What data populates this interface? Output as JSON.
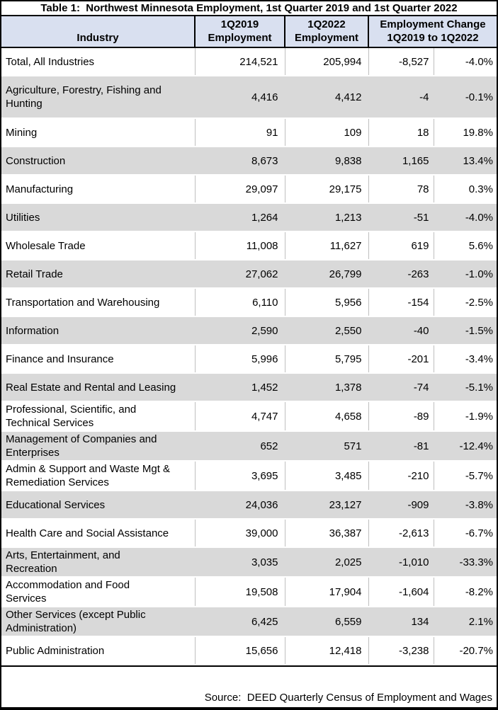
{
  "title": "Table 1:  Northwest Minnesota Employment, 1st Quarter 2019 and 1st Quarter 2022",
  "columns": {
    "industry": "Industry",
    "q1_2019": "1Q2019\nEmployment",
    "q1_2022": "1Q2022\nEmployment",
    "change": "Employment Change\n1Q2019 to 1Q2022"
  },
  "rows": [
    {
      "industry": "Total, All Industries",
      "e2019": "214,521",
      "e2022": "205,994",
      "change": "-8,527",
      "pct": "-4.0%"
    },
    {
      "industry": "Agriculture, Forestry, Fishing and\nHunting",
      "e2019": "4,416",
      "e2022": "4,412",
      "change": "-4",
      "pct": "-0.1%"
    },
    {
      "industry": "Mining",
      "e2019": "91",
      "e2022": "109",
      "change": "18",
      "pct": "19.8%"
    },
    {
      "industry": "Construction",
      "e2019": "8,673",
      "e2022": "9,838",
      "change": "1,165",
      "pct": "13.4%"
    },
    {
      "industry": "Manufacturing",
      "e2019": "29,097",
      "e2022": "29,175",
      "change": "78",
      "pct": "0.3%"
    },
    {
      "industry": "Utilities",
      "e2019": "1,264",
      "e2022": "1,213",
      "change": "-51",
      "pct": "-4.0%"
    },
    {
      "industry": "Wholesale Trade",
      "e2019": "11,008",
      "e2022": "11,627",
      "change": "619",
      "pct": "5.6%"
    },
    {
      "industry": "Retail Trade",
      "e2019": "27,062",
      "e2022": "26,799",
      "change": "-263",
      "pct": "-1.0%"
    },
    {
      "industry": "Transportation and Warehousing",
      "e2019": "6,110",
      "e2022": "5,956",
      "change": "-154",
      "pct": "-2.5%"
    },
    {
      "industry": "Information",
      "e2019": "2,590",
      "e2022": "2,550",
      "change": "-40",
      "pct": "-1.5%"
    },
    {
      "industry": "Finance and Insurance",
      "e2019": "5,996",
      "e2022": "5,795",
      "change": "-201",
      "pct": "-3.4%"
    },
    {
      "industry": "Real Estate and Rental and Leasing",
      "e2019": "1,452",
      "e2022": "1,378",
      "change": "-74",
      "pct": "-5.1%"
    },
    {
      "industry": "Professional, Scientific, and\nTechnical Services",
      "e2019": "4,747",
      "e2022": "4,658",
      "change": "-89",
      "pct": "-1.9%"
    },
    {
      "industry": "Management of Companies and\nEnterprises",
      "e2019": "652",
      "e2022": "571",
      "change": "-81",
      "pct": "-12.4%"
    },
    {
      "industry": "Admin & Support and Waste Mgt &\nRemediation Services",
      "e2019": "3,695",
      "e2022": "3,485",
      "change": "-210",
      "pct": "-5.7%"
    },
    {
      "industry": "Educational Services",
      "e2019": "24,036",
      "e2022": "23,127",
      "change": "-909",
      "pct": "-3.8%"
    },
    {
      "industry": "Health Care and Social Assistance",
      "e2019": "39,000",
      "e2022": "36,387",
      "change": "-2,613",
      "pct": "-6.7%"
    },
    {
      "industry": "Arts, Entertainment, and\nRecreation",
      "e2019": "3,035",
      "e2022": "2,025",
      "change": "-1,010",
      "pct": "-33.3%"
    },
    {
      "industry": "Accommodation and Food\nServices",
      "e2019": "19,508",
      "e2022": "17,904",
      "change": "-1,604",
      "pct": "-8.2%"
    },
    {
      "industry": "Other Services (except Public\nAdministration)",
      "e2019": "6,425",
      "e2022": "6,559",
      "change": "134",
      "pct": "2.1%"
    },
    {
      "industry": "Public Administration",
      "e2019": "15,656",
      "e2022": "12,418",
      "change": "-3,238",
      "pct": "-20.7%"
    }
  ],
  "footer": {
    "source": "Source:  DEED Quarterly Census of Employment and Wages"
  },
  "colors": {
    "header_fill": "#d9e0f0",
    "shaded_row_fill": "#d9d9d9",
    "outer_border": "#000000",
    "gridline": "#bfbfbf"
  },
  "chart_data": {
    "type": "table",
    "title": "Table 1: Northwest Minnesota Employment, 1st Quarter 2019 and 1st Quarter 2022",
    "columns": [
      "Industry",
      "1Q2019 Employment",
      "1Q2022 Employment",
      "Employment Change 1Q2019 to 1Q2022 (count)",
      "Employment Change 1Q2019 to 1Q2022 (percent)"
    ],
    "rows": [
      [
        "Total, All Industries",
        214521,
        205994,
        -8527,
        -4.0
      ],
      [
        "Agriculture, Forestry, Fishing and Hunting",
        4416,
        4412,
        -4,
        -0.1
      ],
      [
        "Mining",
        91,
        109,
        18,
        19.8
      ],
      [
        "Construction",
        8673,
        9838,
        1165,
        13.4
      ],
      [
        "Manufacturing",
        29097,
        29175,
        78,
        0.3
      ],
      [
        "Utilities",
        1264,
        1213,
        -51,
        -4.0
      ],
      [
        "Wholesale Trade",
        11008,
        11627,
        619,
        5.6
      ],
      [
        "Retail Trade",
        27062,
        26799,
        -263,
        -1.0
      ],
      [
        "Transportation and Warehousing",
        6110,
        5956,
        -154,
        -2.5
      ],
      [
        "Information",
        2590,
        2550,
        -40,
        -1.5
      ],
      [
        "Finance and Insurance",
        5996,
        5795,
        -201,
        -3.4
      ],
      [
        "Real Estate and Rental and Leasing",
        1452,
        1378,
        -74,
        -5.1
      ],
      [
        "Professional, Scientific, and Technical Services",
        4747,
        4658,
        -89,
        -1.9
      ],
      [
        "Management of Companies and Enterprises",
        652,
        571,
        -81,
        -12.4
      ],
      [
        "Admin & Support and Waste Mgt & Remediation Services",
        3695,
        3485,
        -210,
        -5.7
      ],
      [
        "Educational Services",
        24036,
        23127,
        -909,
        -3.8
      ],
      [
        "Health Care and Social Assistance",
        39000,
        36387,
        -2613,
        -6.7
      ],
      [
        "Arts, Entertainment, and Recreation",
        3035,
        2025,
        -1010,
        -33.3
      ],
      [
        "Accommodation and Food Services",
        19508,
        17904,
        -1604,
        -8.2
      ],
      [
        "Other Services (except Public Administration)",
        6425,
        6559,
        134,
        2.1
      ],
      [
        "Public Administration",
        15656,
        12418,
        -3238,
        -20.7
      ]
    ],
    "source": "DEED Quarterly Census of Employment and Wages"
  }
}
